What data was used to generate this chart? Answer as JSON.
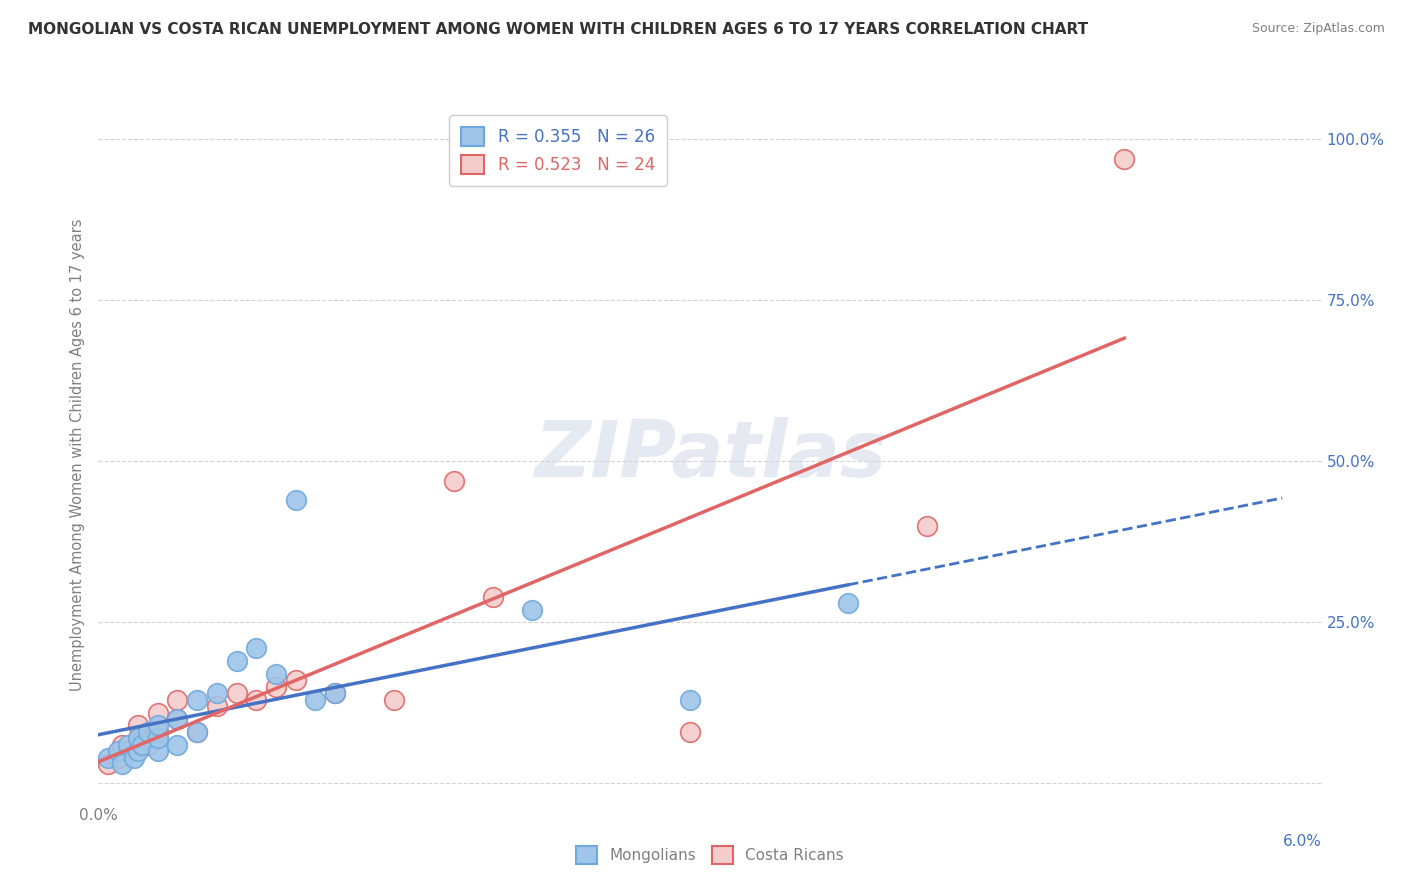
{
  "title": "MONGOLIAN VS COSTA RICAN UNEMPLOYMENT AMONG WOMEN WITH CHILDREN AGES 6 TO 17 YEARS CORRELATION CHART",
  "source": "Source: ZipAtlas.com",
  "ylabel": "Unemployment Among Women with Children Ages 6 to 17 years",
  "legend_entries": [
    {
      "label_r": "R = 0.355",
      "label_n": "N = 26",
      "color": "#9fc5e8",
      "line_color": "#4472c4"
    },
    {
      "label_r": "R = 0.523",
      "label_n": "N = 24",
      "color": "#f4cccc",
      "line_color": "#e06666"
    }
  ],
  "mongolian_scatter_x": [
    0.0005,
    0.001,
    0.0012,
    0.0015,
    0.0018,
    0.002,
    0.002,
    0.0022,
    0.0025,
    0.003,
    0.003,
    0.003,
    0.004,
    0.004,
    0.005,
    0.005,
    0.006,
    0.007,
    0.008,
    0.009,
    0.01,
    0.011,
    0.012,
    0.022,
    0.03,
    0.038
  ],
  "mongolian_scatter_y": [
    0.04,
    0.05,
    0.03,
    0.06,
    0.04,
    0.05,
    0.07,
    0.06,
    0.08,
    0.05,
    0.07,
    0.09,
    0.06,
    0.1,
    0.08,
    0.13,
    0.14,
    0.19,
    0.21,
    0.17,
    0.44,
    0.13,
    0.14,
    0.27,
    0.13,
    0.28
  ],
  "costarican_scatter_x": [
    0.0005,
    0.001,
    0.0012,
    0.0015,
    0.002,
    0.002,
    0.0025,
    0.003,
    0.003,
    0.004,
    0.004,
    0.005,
    0.006,
    0.007,
    0.008,
    0.009,
    0.01,
    0.012,
    0.015,
    0.018,
    0.02,
    0.03,
    0.042,
    0.052
  ],
  "costarican_scatter_y": [
    0.03,
    0.04,
    0.06,
    0.05,
    0.07,
    0.09,
    0.06,
    0.08,
    0.11,
    0.1,
    0.13,
    0.08,
    0.12,
    0.14,
    0.13,
    0.15,
    0.16,
    0.14,
    0.13,
    0.47,
    0.29,
    0.08,
    0.4,
    0.97
  ],
  "mongolian_line_color": "#4472c4",
  "costarican_line_color": "#e06666",
  "scatter_mongolian_facecolor": "#9fc5e8",
  "scatter_costarican_facecolor": "#f4cccc",
  "scatter_mongolian_edgecolor": "#6fa8dc",
  "scatter_costarican_edgecolor": "#e06666",
  "background_color": "#ffffff",
  "watermark_text": "ZIPatlas",
  "xlim": [
    0.0,
    0.062
  ],
  "ylim": [
    -0.03,
    1.05
  ],
  "ytick_positions": [
    0.0,
    0.25,
    0.5,
    0.75,
    1.0
  ],
  "ytick_labels_right": [
    "",
    "25.0%",
    "50.0%",
    "75.0%",
    "100.0%"
  ],
  "right_tick_color": "#4472c4"
}
